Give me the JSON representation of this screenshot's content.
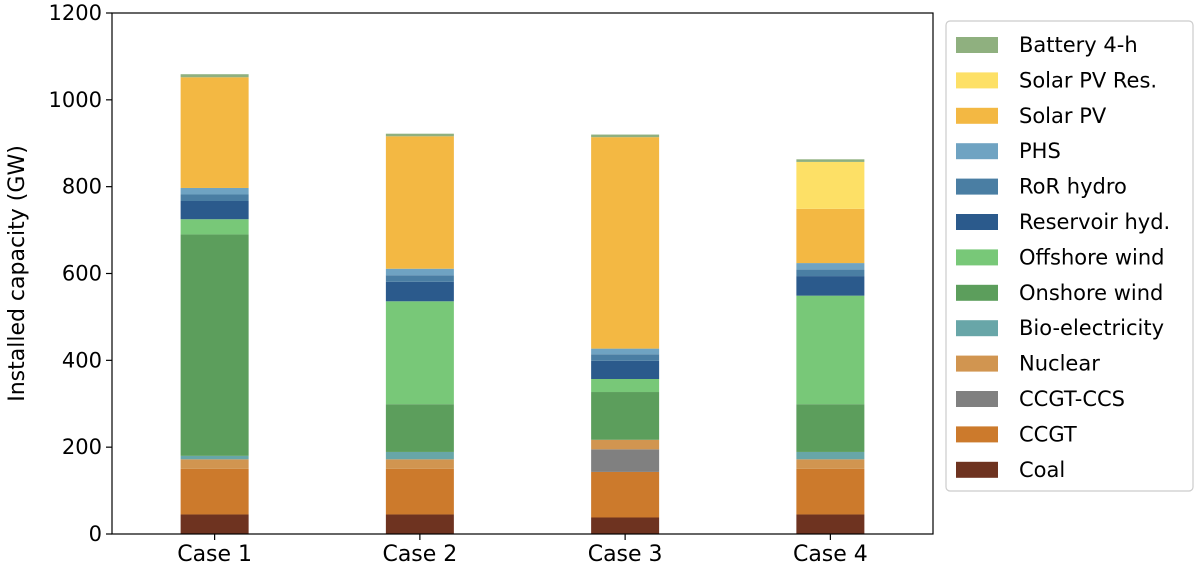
{
  "chart_data": {
    "type": "bar",
    "stacked": true,
    "title": "",
    "xlabel": "",
    "ylabel": "Installed capacity (GW)",
    "ylim": [
      0,
      1200
    ],
    "yticks": [
      "0",
      "200",
      "400",
      "600",
      "800",
      "1000",
      "1200"
    ],
    "grid": false,
    "legend_position": "right, outside plot",
    "categories": [
      "Case 1",
      "Case 2",
      "Case 3",
      "Case 4"
    ],
    "series": [
      {
        "name": "Coal",
        "color": "#6e3320",
        "values": [
          45,
          45,
          38,
          45
        ]
      },
      {
        "name": "CCGT",
        "color": "#cc7a2c",
        "values": [
          105,
          105,
          105,
          105
        ]
      },
      {
        "name": "CCGT-CCS",
        "color": "#808080",
        "values": [
          0,
          0,
          52,
          0
        ]
      },
      {
        "name": "Nuclear",
        "color": "#d19550",
        "values": [
          22,
          22,
          22,
          22
        ]
      },
      {
        "name": "Bio-electricity",
        "color": "#68a6a8",
        "values": [
          8,
          17,
          0,
          17
        ]
      },
      {
        "name": "Onshore wind",
        "color": "#5c9e5c",
        "values": [
          510,
          110,
          110,
          110
        ]
      },
      {
        "name": "Offshore wind",
        "color": "#78c878",
        "values": [
          35,
          237,
          30,
          250
        ]
      },
      {
        "name": "Reservoir hyd.",
        "color": "#2b5a8c",
        "values": [
          42,
          45,
          42,
          45
        ]
      },
      {
        "name": "RoR hydro",
        "color": "#4a7ea3",
        "values": [
          15,
          15,
          15,
          15
        ]
      },
      {
        "name": "PHS",
        "color": "#6fa3c2",
        "values": [
          15,
          15,
          13,
          15
        ]
      },
      {
        "name": "Solar PV",
        "color": "#f3b843",
        "values": [
          255,
          305,
          487,
          125
        ]
      },
      {
        "name": "Solar PV Res.",
        "color": "#fde066",
        "values": [
          0,
          0,
          0,
          108
        ]
      },
      {
        "name": "Battery 4-h",
        "color": "#8fb07f",
        "values": [
          7,
          6,
          6,
          6
        ]
      }
    ]
  }
}
